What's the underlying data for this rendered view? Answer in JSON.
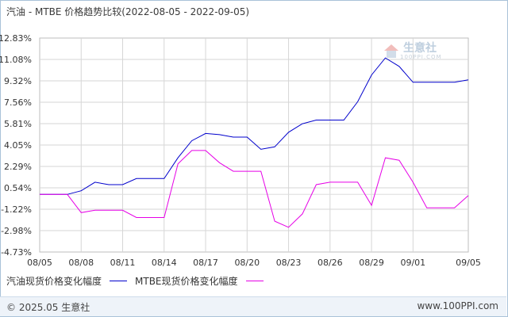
{
  "header": {
    "title": "汽油 - MTBE 价格趋势比较(2022-08-05 - 2022-09-05)"
  },
  "watermark": {
    "name": "生意社",
    "url": "100PPI.COM"
  },
  "footer": {
    "copyright": "© 2025.05 生意社",
    "site": "www.100PPI.com"
  },
  "colors": {
    "gasoline": "#0000cc",
    "mtbe": "#e600e6",
    "grid": "#d6d6d6",
    "zero_line": "#dddddd"
  },
  "chart_data": {
    "type": "line",
    "title": "汽油 - MTBE 价格趋势比较(2022-08-05 - 2022-09-05)",
    "x_tick_labels": [
      "08/05",
      "08/08",
      "08/11",
      "08/14",
      "08/17",
      "08/20",
      "08/23",
      "08/26",
      "08/29",
      "09/01",
      "09/05"
    ],
    "x_tick_days": [
      0,
      3,
      6,
      9,
      12,
      15,
      18,
      21,
      24,
      27,
      31
    ],
    "y_tick_labels": [
      "12.83%",
      "11.08%",
      "9.32%",
      "7.56%",
      "5.81%",
      "4.05%",
      "2.29%",
      "0.54%",
      "-1.22%",
      "-2.98%",
      "-4.73%"
    ],
    "ylim": [
      -4.73,
      12.83
    ],
    "legend_position": "bottom",
    "grid": true,
    "series": [
      {
        "name": "汽油现货价格变化幅度",
        "x": [
          0,
          2,
          3,
          4,
          5,
          6,
          7,
          8,
          9,
          10,
          11,
          12,
          13,
          14,
          15,
          16,
          17,
          18,
          19,
          20,
          21,
          22,
          23,
          24,
          25,
          26,
          27,
          28,
          29,
          30,
          31
        ],
        "values": [
          0.0,
          0.0,
          0.3,
          1.0,
          0.8,
          0.8,
          1.3,
          1.3,
          1.3,
          3.0,
          4.4,
          5.0,
          4.9,
          4.7,
          4.7,
          3.7,
          3.9,
          5.1,
          5.8,
          6.1,
          6.1,
          6.1,
          7.6,
          9.8,
          11.2,
          10.5,
          9.2,
          9.2,
          9.2,
          9.2,
          9.4
        ]
      },
      {
        "name": "MTBE现货价格变化幅度",
        "x": [
          0,
          2,
          3,
          4,
          5,
          6,
          7,
          8,
          9,
          10,
          11,
          12,
          13,
          14,
          15,
          16,
          17,
          18,
          19,
          20,
          21,
          22,
          23,
          24,
          25,
          26,
          27,
          28,
          29,
          30,
          31
        ],
        "values": [
          0.0,
          0.0,
          -1.5,
          -1.3,
          -1.3,
          -1.3,
          -1.9,
          -1.9,
          -1.9,
          2.5,
          3.6,
          3.6,
          2.6,
          1.9,
          1.9,
          1.9,
          -2.2,
          -2.7,
          -1.6,
          0.8,
          1.0,
          1.0,
          1.0,
          -0.9,
          3.0,
          2.8,
          1.0,
          -1.1,
          -1.1,
          -1.1,
          -0.1
        ]
      }
    ]
  }
}
